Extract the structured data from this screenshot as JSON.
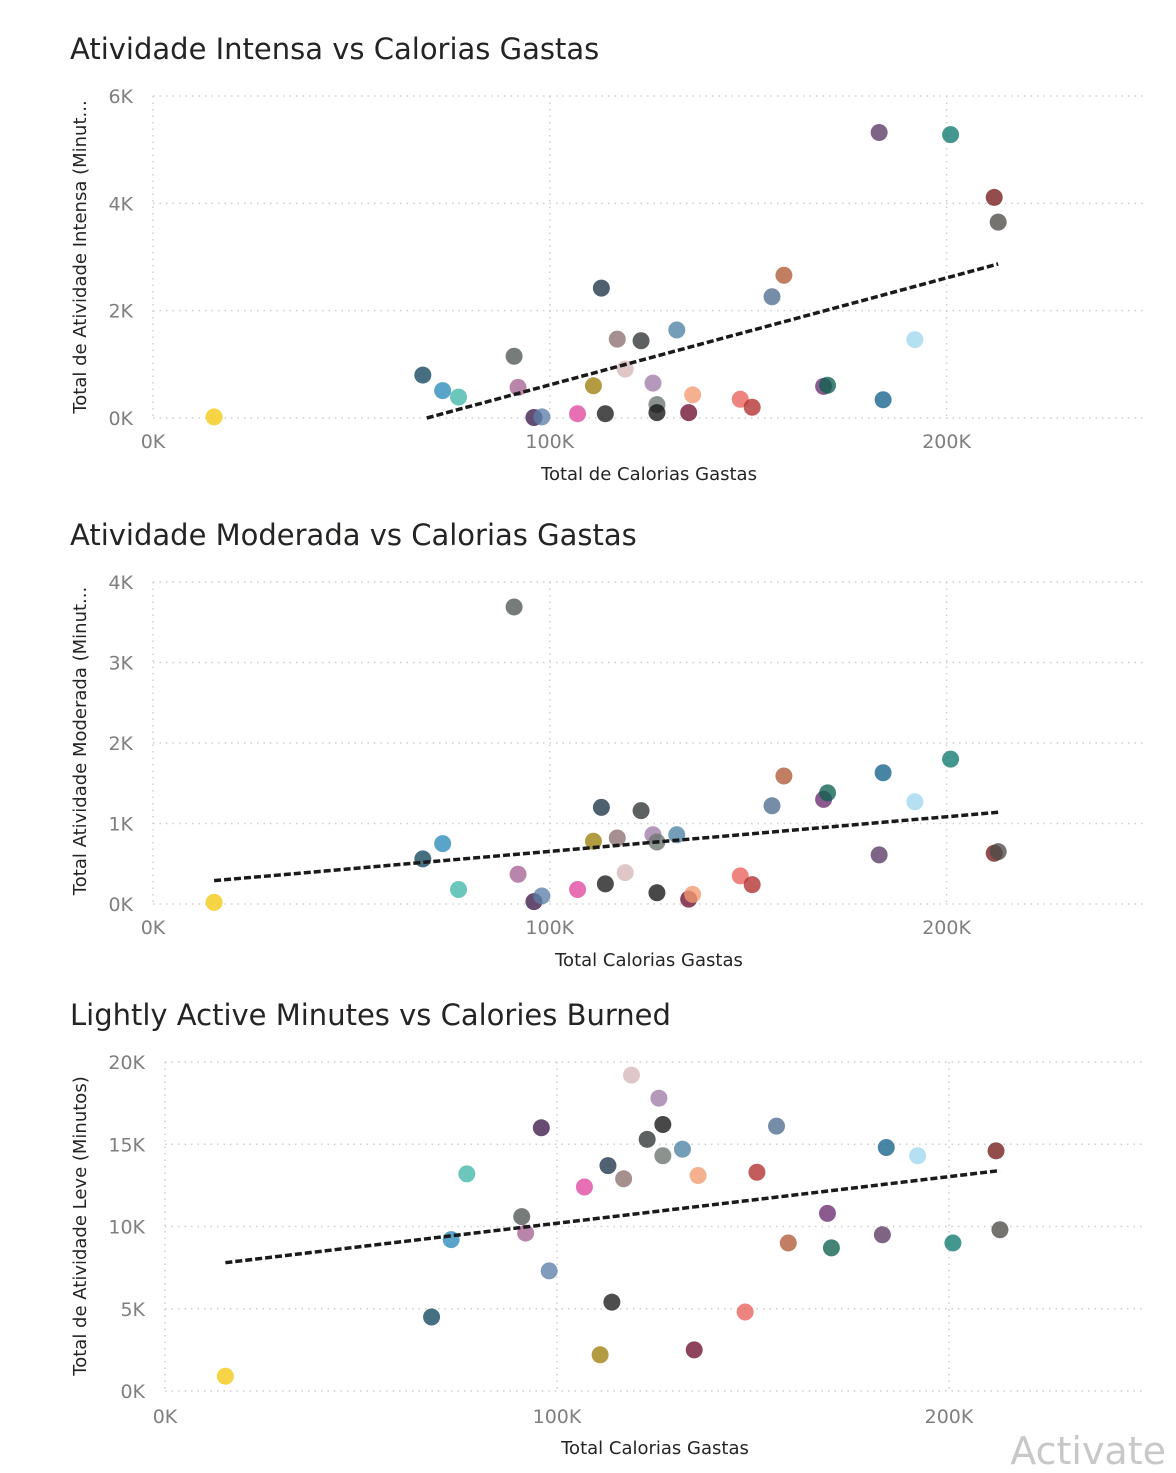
{
  "watermark": "Activate",
  "chart_data": [
    {
      "type": "scatter",
      "title": "Atividade Intensa vs Calorias Gastas",
      "xlabel": "Total de Calorias Gastas",
      "ylabel": "Total de Atividade Intensa (Minut...",
      "xlim": [
        0,
        250000
      ],
      "ylim": [
        0,
        6000
      ],
      "x_ticks": [
        0,
        100000,
        200000
      ],
      "x_tick_labels": [
        "0K",
        "100K",
        "200K"
      ],
      "y_ticks": [
        0,
        2000,
        4000,
        6000
      ],
      "y_tick_labels": [
        "0K",
        "2K",
        "4K",
        "6K"
      ],
      "grid": true,
      "trend_line": [
        [
          69000,
          0
        ],
        [
          213000,
          2870
        ]
      ],
      "points": [
        {
          "x": 15400,
          "y": 20,
          "color": "#f2c811"
        },
        {
          "x": 68000,
          "y": 800,
          "color": "#12485f"
        },
        {
          "x": 73000,
          "y": 510,
          "color": "#2a8ab8"
        },
        {
          "x": 77000,
          "y": 390,
          "color": "#41b6a9"
        },
        {
          "x": 91000,
          "y": 1150,
          "color": "#4f5755"
        },
        {
          "x": 92000,
          "y": 570,
          "color": "#a56393"
        },
        {
          "x": 96000,
          "y": 10,
          "color": "#3c1a4a"
        },
        {
          "x": 98000,
          "y": 20,
          "color": "#5c7fa8"
        },
        {
          "x": 107000,
          "y": 80,
          "color": "#e0479e"
        },
        {
          "x": 111000,
          "y": 600,
          "color": "#9c7f0a"
        },
        {
          "x": 113000,
          "y": 2420,
          "color": "#1d3349"
        },
        {
          "x": 114000,
          "y": 80,
          "color": "#1b1b1b"
        },
        {
          "x": 117000,
          "y": 1470,
          "color": "#8c6f70"
        },
        {
          "x": 119000,
          "y": 910,
          "color": "#d6b7b8"
        },
        {
          "x": 123000,
          "y": 1440,
          "color": "#2f3535"
        },
        {
          "x": 126000,
          "y": 650,
          "color": "#a07ca8"
        },
        {
          "x": 127000,
          "y": 250,
          "color": "#6a7470"
        },
        {
          "x": 127000,
          "y": 100,
          "color": "#141414"
        },
        {
          "x": 132000,
          "y": 1640,
          "color": "#4d83a3"
        },
        {
          "x": 135000,
          "y": 100,
          "color": "#701030"
        },
        {
          "x": 136000,
          "y": 430,
          "color": "#f29a71"
        },
        {
          "x": 148000,
          "y": 350,
          "color": "#e8615c"
        },
        {
          "x": 151000,
          "y": 200,
          "color": "#b22e2e"
        },
        {
          "x": 156000,
          "y": 2260,
          "color": "#4f6d8e"
        },
        {
          "x": 159000,
          "y": 2660,
          "color": "#b05a36"
        },
        {
          "x": 169000,
          "y": 590,
          "color": "#6a2c6e"
        },
        {
          "x": 170000,
          "y": 610,
          "color": "#0e6150"
        },
        {
          "x": 183000,
          "y": 5320,
          "color": "#5a3a63"
        },
        {
          "x": 184000,
          "y": 340,
          "color": "#14618a"
        },
        {
          "x": 192000,
          "y": 1460,
          "color": "#9fd7ee"
        },
        {
          "x": 201000,
          "y": 5280,
          "color": "#0f7a6e"
        },
        {
          "x": 212000,
          "y": 4110,
          "color": "#741b1b"
        },
        {
          "x": 213000,
          "y": 3650,
          "color": "#4d4b48"
        }
      ]
    },
    {
      "type": "scatter",
      "title": "Atividade Moderada vs Calorias Gastas",
      "xlabel": "Total Calorias Gastas",
      "ylabel": "Total Atividade Moderada (Minut...",
      "xlim": [
        0,
        250000
      ],
      "ylim": [
        0,
        4000
      ],
      "x_ticks": [
        0,
        100000,
        200000
      ],
      "x_tick_labels": [
        "0K",
        "100K",
        "200K"
      ],
      "y_ticks": [
        0,
        1000,
        2000,
        3000,
        4000
      ],
      "y_tick_labels": [
        "0K",
        "1K",
        "2K",
        "3K",
        "4K"
      ],
      "grid": true,
      "trend_line": [
        [
          15400,
          290
        ],
        [
          213000,
          1140
        ]
      ],
      "points": [
        {
          "x": 15400,
          "y": 20,
          "color": "#f2c811"
        },
        {
          "x": 68000,
          "y": 560,
          "color": "#12485f"
        },
        {
          "x": 73000,
          "y": 750,
          "color": "#2a8ab8"
        },
        {
          "x": 77000,
          "y": 180,
          "color": "#41b6a9"
        },
        {
          "x": 91000,
          "y": 3690,
          "color": "#4f5755"
        },
        {
          "x": 92000,
          "y": 370,
          "color": "#a56393"
        },
        {
          "x": 96000,
          "y": 30,
          "color": "#3c1a4a"
        },
        {
          "x": 98000,
          "y": 100,
          "color": "#5c7fa8"
        },
        {
          "x": 107000,
          "y": 180,
          "color": "#e0479e"
        },
        {
          "x": 111000,
          "y": 780,
          "color": "#9c7f0a"
        },
        {
          "x": 113000,
          "y": 1200,
          "color": "#1d3349"
        },
        {
          "x": 114000,
          "y": 250,
          "color": "#1b1b1b"
        },
        {
          "x": 117000,
          "y": 820,
          "color": "#8c6f70"
        },
        {
          "x": 119000,
          "y": 390,
          "color": "#d6b7b8"
        },
        {
          "x": 123000,
          "y": 1160,
          "color": "#2f3535"
        },
        {
          "x": 126000,
          "y": 860,
          "color": "#a07ca8"
        },
        {
          "x": 127000,
          "y": 770,
          "color": "#6a7470"
        },
        {
          "x": 127000,
          "y": 140,
          "color": "#141414"
        },
        {
          "x": 132000,
          "y": 860,
          "color": "#4d83a3"
        },
        {
          "x": 135000,
          "y": 60,
          "color": "#701030"
        },
        {
          "x": 136000,
          "y": 120,
          "color": "#f29a71"
        },
        {
          "x": 148000,
          "y": 350,
          "color": "#e8615c"
        },
        {
          "x": 151000,
          "y": 240,
          "color": "#b22e2e"
        },
        {
          "x": 156000,
          "y": 1220,
          "color": "#4f6d8e"
        },
        {
          "x": 159000,
          "y": 1590,
          "color": "#b05a36"
        },
        {
          "x": 169000,
          "y": 1300,
          "color": "#6a2c6e"
        },
        {
          "x": 170000,
          "y": 1380,
          "color": "#0e6150"
        },
        {
          "x": 183000,
          "y": 610,
          "color": "#5a3a63"
        },
        {
          "x": 184000,
          "y": 1630,
          "color": "#14618a"
        },
        {
          "x": 192000,
          "y": 1270,
          "color": "#9fd7ee"
        },
        {
          "x": 201000,
          "y": 1800,
          "color": "#0f7a6e"
        },
        {
          "x": 212000,
          "y": 630,
          "color": "#741b1b"
        },
        {
          "x": 213000,
          "y": 650,
          "color": "#4d4b48"
        }
      ]
    },
    {
      "type": "scatter",
      "title": "Lightly Active Minutes vs Calories Burned",
      "xlabel": "Total Calorias Gastas",
      "ylabel": "Total de Atividade Leve (Minutos)",
      "xlim": [
        0,
        250000
      ],
      "ylim": [
        0,
        20000
      ],
      "x_ticks": [
        0,
        100000,
        200000
      ],
      "x_tick_labels": [
        "0K",
        "100K",
        "200K"
      ],
      "y_ticks": [
        0,
        5000,
        10000,
        15000,
        20000
      ],
      "y_tick_labels": [
        "0K",
        "5K",
        "10K",
        "15K",
        "20K"
      ],
      "grid": true,
      "trend_line": [
        [
          15400,
          7800
        ],
        [
          213000,
          13400
        ]
      ],
      "points": [
        {
          "x": 15400,
          "y": 900,
          "color": "#f2c811"
        },
        {
          "x": 68000,
          "y": 4500,
          "color": "#12485f"
        },
        {
          "x": 73000,
          "y": 9200,
          "color": "#2a8ab8"
        },
        {
          "x": 77000,
          "y": 13200,
          "color": "#41b6a9"
        },
        {
          "x": 91000,
          "y": 10600,
          "color": "#4f5755"
        },
        {
          "x": 92000,
          "y": 9600,
          "color": "#a56393"
        },
        {
          "x": 96000,
          "y": 16000,
          "color": "#3c1a4a"
        },
        {
          "x": 98000,
          "y": 7300,
          "color": "#5c7fa8"
        },
        {
          "x": 107000,
          "y": 12400,
          "color": "#e0479e"
        },
        {
          "x": 111000,
          "y": 2200,
          "color": "#9c7f0a"
        },
        {
          "x": 113000,
          "y": 13700,
          "color": "#1d3349"
        },
        {
          "x": 114000,
          "y": 5400,
          "color": "#1b1b1b"
        },
        {
          "x": 117000,
          "y": 12900,
          "color": "#8c6f70"
        },
        {
          "x": 119000,
          "y": 19200,
          "color": "#d6b7b8"
        },
        {
          "x": 123000,
          "y": 15300,
          "color": "#2f3535"
        },
        {
          "x": 126000,
          "y": 17800,
          "color": "#a07ca8"
        },
        {
          "x": 127000,
          "y": 14300,
          "color": "#6a7470"
        },
        {
          "x": 127000,
          "y": 16200,
          "color": "#141414"
        },
        {
          "x": 132000,
          "y": 14700,
          "color": "#4d83a3"
        },
        {
          "x": 135000,
          "y": 2500,
          "color": "#701030"
        },
        {
          "x": 136000,
          "y": 13100,
          "color": "#f29a71"
        },
        {
          "x": 148000,
          "y": 4800,
          "color": "#e8615c"
        },
        {
          "x": 151000,
          "y": 13300,
          "color": "#b22e2e"
        },
        {
          "x": 156000,
          "y": 16100,
          "color": "#4f6d8e"
        },
        {
          "x": 159000,
          "y": 9000,
          "color": "#b05a36"
        },
        {
          "x": 169000,
          "y": 10800,
          "color": "#6a2c6e"
        },
        {
          "x": 170000,
          "y": 8700,
          "color": "#0e6150"
        },
        {
          "x": 183000,
          "y": 9500,
          "color": "#5a3a63"
        },
        {
          "x": 184000,
          "y": 14800,
          "color": "#14618a"
        },
        {
          "x": 192000,
          "y": 14300,
          "color": "#9fd7ee"
        },
        {
          "x": 201000,
          "y": 9000,
          "color": "#0f7a6e"
        },
        {
          "x": 212000,
          "y": 14600,
          "color": "#741b1b"
        },
        {
          "x": 213000,
          "y": 9800,
          "color": "#4d4b48"
        }
      ]
    }
  ]
}
